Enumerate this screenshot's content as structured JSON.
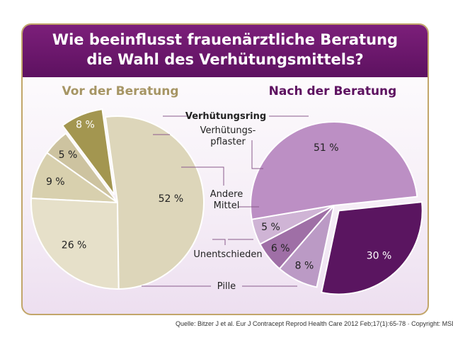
{
  "title_lines": [
    "Wie beeinflusst frauenärztliche Beratung",
    "die Wahl des Verhütungsmittels?"
  ],
  "source": "Quelle: Bitzer J et al. Eur J Contracept Reprod Health Care 2012 Feb;17(1):65-78 · Copyright: MSD",
  "colors": {
    "band": "#6a1569",
    "border": "#c2a66a",
    "before_title": "#a69564",
    "after_title": "#5d1160",
    "before": [
      "#a39650",
      "#cdc3a0",
      "#d8d0ae",
      "#e6e0c9",
      "#ddd6ba"
    ],
    "after": [
      "#5a1560",
      "#bb9ac5",
      "#9f6fa6",
      "#cfb4d5",
      "#bc8fc4"
    ]
  },
  "category_labels": [
    {
      "lines": [
        "Verhütungsring"
      ],
      "bold": true
    },
    {
      "lines": [
        "Verhütungs-",
        "pflaster"
      ],
      "bold": false
    },
    {
      "lines": [
        "Andere",
        "Mittel"
      ],
      "bold": false
    },
    {
      "lines": [
        "Unentschieden"
      ],
      "bold": false
    },
    {
      "lines": [
        "Pille"
      ],
      "bold": false
    }
  ],
  "chart_data": [
    {
      "type": "pie",
      "title": "Vor der Beratung",
      "categories": [
        "Verhütungsring",
        "Verhütungspflaster",
        "Andere Mittel",
        "Unentschieden",
        "Pille"
      ],
      "values": [
        8,
        5,
        9,
        26,
        52
      ],
      "value_labels": [
        "8 %",
        "5 %",
        "9 %",
        "26 %",
        "52 %"
      ],
      "exploded": "Verhütungsring"
    },
    {
      "type": "pie",
      "title": "Nach der Beratung",
      "categories": [
        "Verhütungsring",
        "Verhütungspflaster",
        "Andere Mittel",
        "Unentschieden",
        "Pille"
      ],
      "values": [
        30,
        8,
        6,
        5,
        51
      ],
      "value_labels": [
        "30 %",
        "8 %",
        "6 %",
        "5 %",
        "51 %"
      ],
      "exploded": "Verhütungsring"
    }
  ]
}
